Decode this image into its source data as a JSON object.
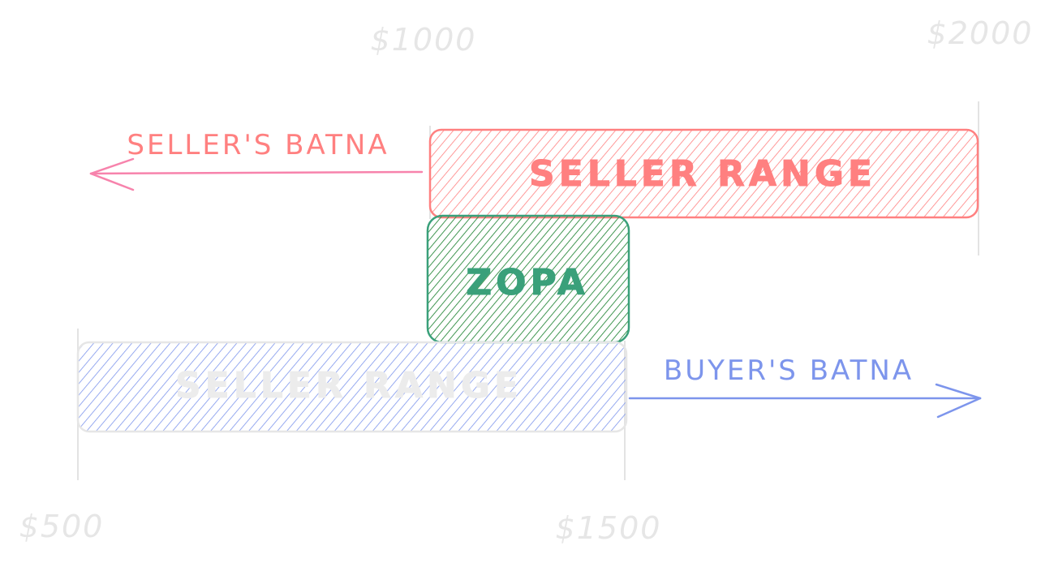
{
  "diagram": {
    "ticks": {
      "t1000": "$1000",
      "t2000": "$2000",
      "t500": "$500",
      "t1500": "$1500"
    },
    "seller_range_label": "SELLER RANGE",
    "buyer_range_label": "SELLER RANGE",
    "zopa_label": "ZOPA",
    "seller_batna_label": "SELLER'S BATNA",
    "buyer_batna_label": "BUYER'S BATNA",
    "colors": {
      "seller": "#ff8080",
      "seller_arrow": "#f783ac",
      "buyer": "#7d95ec",
      "zopa_stroke": "#3aa07a",
      "zopa_hatch": "#2b8a3e",
      "tick_text": "#e6e6e6",
      "guide_line": "#e3e3e3"
    }
  }
}
